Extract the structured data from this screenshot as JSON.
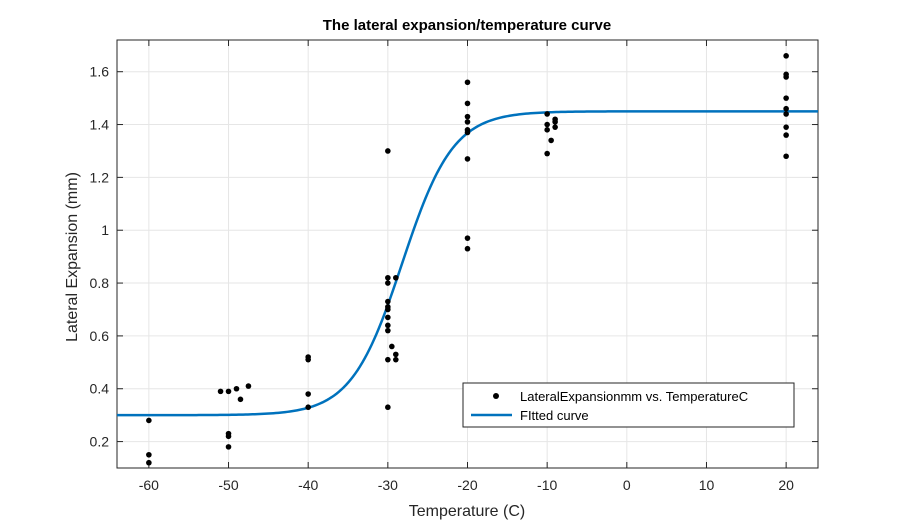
{
  "chart_data": {
    "type": "scatter",
    "title": "The lateral expansion/temperature curve",
    "xlabel": "Temperature (C)",
    "ylabel": "Lateral Expansion (mm)",
    "xlim": [
      -64,
      24
    ],
    "ylim": [
      0.1,
      1.72
    ],
    "xticks": [
      -60,
      -50,
      -40,
      -30,
      -20,
      -10,
      0,
      10,
      20
    ],
    "xtick_labels": [
      "-60",
      "-50",
      "-40",
      "-30",
      "-20",
      "-10",
      "0",
      "10",
      "20"
    ],
    "yticks": [
      0.2,
      0.4,
      0.6,
      0.8,
      1.0,
      1.2,
      1.4,
      1.6
    ],
    "ytick_labels": [
      "0.2",
      "0.4",
      "0.6",
      "0.8",
      "1",
      "1.2",
      "1.4",
      "1.6"
    ],
    "grid": true,
    "legend_position": "bottom-right",
    "colors": {
      "points": "#000000",
      "fit": "#0072BD",
      "grid": "#e6e6e6",
      "axes": "#262626"
    },
    "series": [
      {
        "name": "LateralExpansionmm vs. TemperatureC",
        "kind": "scatter",
        "points": [
          [
            -60,
            0.28
          ],
          [
            -60,
            0.15
          ],
          [
            -60,
            0.12
          ],
          [
            -51,
            0.39
          ],
          [
            -50,
            0.39
          ],
          [
            -49,
            0.4
          ],
          [
            -47.5,
            0.41
          ],
          [
            -48.5,
            0.36
          ],
          [
            -50,
            0.23
          ],
          [
            -50,
            0.22
          ],
          [
            -50,
            0.18
          ],
          [
            -40,
            0.52
          ],
          [
            -40,
            0.51
          ],
          [
            -40,
            0.38
          ],
          [
            -40,
            0.33
          ],
          [
            -30,
            1.3
          ],
          [
            -30,
            0.82
          ],
          [
            -30,
            0.8
          ],
          [
            -29,
            0.82
          ],
          [
            -30,
            0.73
          ],
          [
            -30,
            0.71
          ],
          [
            -30,
            0.7
          ],
          [
            -30,
            0.67
          ],
          [
            -30,
            0.64
          ],
          [
            -30,
            0.62
          ],
          [
            -29.5,
            0.56
          ],
          [
            -30,
            0.51
          ],
          [
            -29,
            0.53
          ],
          [
            -29,
            0.51
          ],
          [
            -30,
            0.33
          ],
          [
            -20,
            1.56
          ],
          [
            -20,
            1.48
          ],
          [
            -20,
            1.43
          ],
          [
            -20,
            1.41
          ],
          [
            -20,
            1.38
          ],
          [
            -20,
            1.37
          ],
          [
            -20,
            1.27
          ],
          [
            -20,
            0.97
          ],
          [
            -20,
            0.93
          ],
          [
            -10,
            1.44
          ],
          [
            -10,
            1.4
          ],
          [
            -10,
            1.38
          ],
          [
            -10,
            1.29
          ],
          [
            -9,
            1.42
          ],
          [
            -9,
            1.41
          ],
          [
            -9,
            1.39
          ],
          [
            -9.5,
            1.34
          ],
          [
            20,
            1.66
          ],
          [
            20,
            1.59
          ],
          [
            20,
            1.58
          ],
          [
            20,
            1.5
          ],
          [
            20,
            1.46
          ],
          [
            20,
            1.44
          ],
          [
            20,
            1.39
          ],
          [
            20,
            1.36
          ],
          [
            20,
            1.28
          ]
        ]
      },
      {
        "name": "FItted curve",
        "kind": "line",
        "model": {
          "lower": 0.3,
          "upper": 1.45,
          "midpoint": -28.2,
          "scale": 3.2
        }
      }
    ]
  }
}
